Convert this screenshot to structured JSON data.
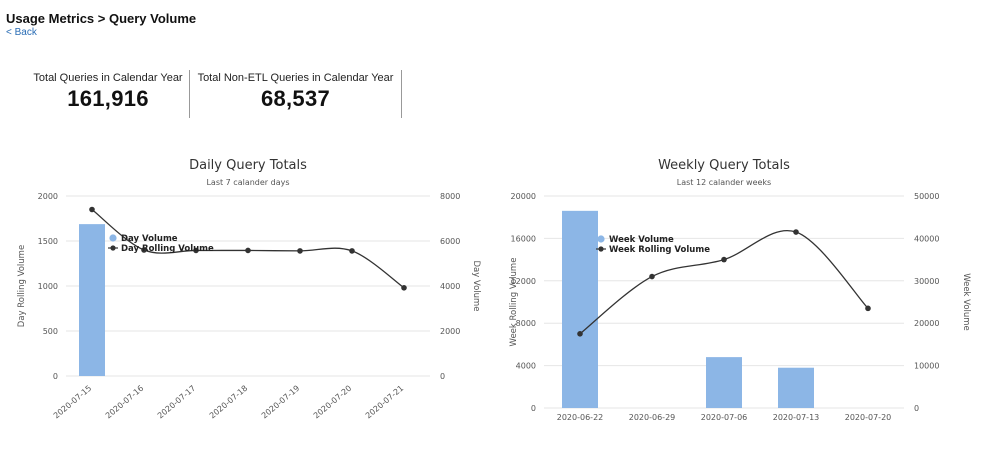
{
  "header": {
    "breadcrumb": "Usage Metrics > Query Volume",
    "back_label": "< Back"
  },
  "kpis": [
    {
      "label": "Total Queries in Calendar Year",
      "value": "161,916"
    },
    {
      "label": "Total Non-ETL Queries in Calendar Year",
      "value": "68,537"
    }
  ],
  "colors": {
    "bar": "#8cb6e6",
    "line": "#333333",
    "grid": "#e6e6e6"
  },
  "chart_data": [
    {
      "type": "bar",
      "title": "Daily Query Totals",
      "subtitle": "Last 7 calander days",
      "categories": [
        "2020-07-15",
        "2020-07-16",
        "2020-07-17",
        "2020-07-18",
        "2020-07-19",
        "2020-07-20",
        "2020-07-21"
      ],
      "ylabel": "Day Rolling Volume",
      "y2label": "Day Volume",
      "ylim": [
        0,
        2000
      ],
      "yticks": [
        0,
        500,
        1000,
        1500,
        2000
      ],
      "y2lim": [
        0,
        8000
      ],
      "y2ticks": [
        0,
        2000,
        4000,
        6000,
        8000
      ],
      "rotate_xticks": true,
      "series": [
        {
          "name": "Day Volume",
          "kind": "bar",
          "axis": "y2",
          "values": [
            6750,
            0,
            0,
            0,
            0,
            0,
            0
          ]
        },
        {
          "name": "Day Rolling Volume",
          "kind": "line",
          "axis": "y",
          "values": [
            1850,
            1400,
            1395,
            1395,
            1390,
            1390,
            980
          ]
        }
      ],
      "legend": "top-left"
    },
    {
      "type": "bar",
      "title": "Weekly Query Totals",
      "subtitle": "Last 12 calander weeks",
      "categories": [
        "2020-06-22",
        "2020-06-29",
        "2020-07-06",
        "2020-07-13",
        "2020-07-20"
      ],
      "ylabel": "Week Rolling Volume",
      "y2label": "Week Volume",
      "ylim": [
        0,
        20000
      ],
      "yticks": [
        0,
        4000,
        8000,
        12000,
        16000,
        20000
      ],
      "y2lim": [
        0,
        50000
      ],
      "y2ticks": [
        0,
        10000,
        20000,
        30000,
        40000,
        50000
      ],
      "rotate_xticks": false,
      "series": [
        {
          "name": "Week Volume",
          "kind": "bar",
          "axis": "y2",
          "values": [
            46500,
            0,
            12000,
            9500,
            0
          ]
        },
        {
          "name": "Week Rolling Volume",
          "kind": "line",
          "axis": "y",
          "values": [
            7000,
            12400,
            14000,
            16600,
            9400
          ]
        }
      ],
      "legend": "top-left"
    }
  ]
}
